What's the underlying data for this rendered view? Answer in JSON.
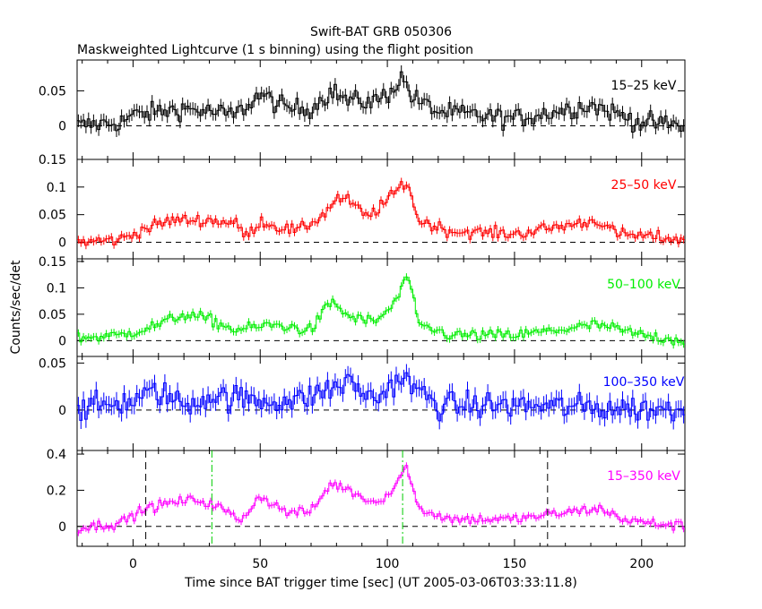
{
  "chart_data": {
    "type": "line",
    "title": "Swift-BAT GRB 050306",
    "subtitle": "Maskweighted Lightcurve (1 s binning) using the flight position",
    "xlabel": "Time since BAT trigger time [sec] (UT 2005-03-06T03:33:11.8)",
    "ylabel": "Counts/sec/det",
    "xlim": [
      -22,
      217
    ],
    "xticks": [
      0,
      50,
      100,
      150,
      200
    ],
    "markers": {
      "black_dashed": [
        5,
        163
      ],
      "green_dashdot": [
        31,
        106
      ]
    },
    "panels": [
      {
        "label": "15–25 keV",
        "color": "#000000",
        "ylim": [
          -0.048,
          0.094
        ],
        "yticks": [
          0,
          0.05
        ],
        "ytick_labels": [
          "0",
          "0.05"
        ],
        "noise": 0.013,
        "profile": [
          [
            -22,
            0.0
          ],
          [
            -5,
            0.005
          ],
          [
            0,
            0.015
          ],
          [
            10,
            0.02
          ],
          [
            20,
            0.025
          ],
          [
            30,
            0.02
          ],
          [
            40,
            0.015
          ],
          [
            50,
            0.045
          ],
          [
            60,
            0.025
          ],
          [
            70,
            0.025
          ],
          [
            78,
            0.05
          ],
          [
            85,
            0.035
          ],
          [
            95,
            0.035
          ],
          [
            100,
            0.045
          ],
          [
            106,
            0.07
          ],
          [
            110,
            0.04
          ],
          [
            120,
            0.02
          ],
          [
            150,
            0.01
          ],
          [
            180,
            0.03
          ],
          [
            200,
            0.005
          ],
          [
            217,
            0.0
          ]
        ]
      },
      {
        "label": "25–50 keV",
        "color": "#ff0000",
        "ylim": [
          -0.03,
          0.15
        ],
        "yticks": [
          0,
          0.05,
          0.1,
          0.15
        ],
        "ytick_labels": [
          "0",
          "0.05",
          "0.1",
          "0.15"
        ],
        "noise": 0.01,
        "profile": [
          [
            -22,
            0.0
          ],
          [
            -5,
            0.005
          ],
          [
            5,
            0.025
          ],
          [
            15,
            0.04
          ],
          [
            30,
            0.04
          ],
          [
            40,
            0.035
          ],
          [
            45,
            0.01
          ],
          [
            50,
            0.04
          ],
          [
            55,
            0.03
          ],
          [
            65,
            0.02
          ],
          [
            75,
            0.05
          ],
          [
            80,
            0.08
          ],
          [
            85,
            0.075
          ],
          [
            92,
            0.045
          ],
          [
            100,
            0.075
          ],
          [
            105,
            0.1
          ],
          [
            108,
            0.11
          ],
          [
            112,
            0.04
          ],
          [
            125,
            0.02
          ],
          [
            150,
            0.015
          ],
          [
            183,
            0.04
          ],
          [
            190,
            0.015
          ],
          [
            217,
            0.005
          ]
        ]
      },
      {
        "label": "50–100 keV",
        "color": "#00ee00",
        "ylim": [
          -0.03,
          0.155
        ],
        "yticks": [
          0,
          0.05,
          0.1,
          0.15
        ],
        "ytick_labels": [
          "0",
          "0.05",
          "0.1",
          "0.15"
        ],
        "noise": 0.01,
        "profile": [
          [
            -22,
            0.005
          ],
          [
            -5,
            0.01
          ],
          [
            10,
            0.03
          ],
          [
            20,
            0.05
          ],
          [
            30,
            0.04
          ],
          [
            40,
            0.02
          ],
          [
            55,
            0.03
          ],
          [
            70,
            0.02
          ],
          [
            78,
            0.075
          ],
          [
            85,
            0.045
          ],
          [
            95,
            0.035
          ],
          [
            102,
            0.065
          ],
          [
            106,
            0.1
          ],
          [
            108,
            0.13
          ],
          [
            112,
            0.03
          ],
          [
            125,
            0.01
          ],
          [
            150,
            0.01
          ],
          [
            183,
            0.03
          ],
          [
            200,
            0.01
          ],
          [
            217,
            0.0
          ]
        ]
      },
      {
        "label": "100–350 keV",
        "color": "#0000ff",
        "ylim": [
          -0.043,
          0.057
        ],
        "yticks": [
          0,
          0.05
        ],
        "ytick_labels": [
          "0",
          "0.05"
        ],
        "noise": 0.013,
        "profile": [
          [
            -22,
            0.0
          ],
          [
            0,
            0.01
          ],
          [
            10,
            0.02
          ],
          [
            20,
            0.005
          ],
          [
            30,
            0.015
          ],
          [
            50,
            0.01
          ],
          [
            65,
            0.01
          ],
          [
            80,
            0.025
          ],
          [
            85,
            0.03
          ],
          [
            95,
            0.01
          ],
          [
            105,
            0.035
          ],
          [
            110,
            0.025
          ],
          [
            120,
            0.005
          ],
          [
            150,
            0.005
          ],
          [
            217,
            0.0
          ]
        ]
      },
      {
        "label": "15–350 keV",
        "color": "#ff00ff",
        "ylim": [
          -0.11,
          0.42
        ],
        "yticks": [
          0,
          0.2,
          0.4
        ],
        "ytick_labels": [
          "0",
          "0.2",
          "0.4"
        ],
        "noise": 0.025,
        "profile": [
          [
            -22,
            -0.01
          ],
          [
            -5,
            0.02
          ],
          [
            5,
            0.1
          ],
          [
            15,
            0.13
          ],
          [
            25,
            0.15
          ],
          [
            35,
            0.1
          ],
          [
            42,
            0.03
          ],
          [
            50,
            0.17
          ],
          [
            60,
            0.08
          ],
          [
            70,
            0.08
          ],
          [
            78,
            0.24
          ],
          [
            85,
            0.2
          ],
          [
            95,
            0.13
          ],
          [
            102,
            0.2
          ],
          [
            106,
            0.3
          ],
          [
            108,
            0.33
          ],
          [
            112,
            0.1
          ],
          [
            125,
            0.04
          ],
          [
            150,
            0.04
          ],
          [
            183,
            0.1
          ],
          [
            195,
            0.03
          ],
          [
            217,
            0.0
          ]
        ]
      }
    ]
  }
}
